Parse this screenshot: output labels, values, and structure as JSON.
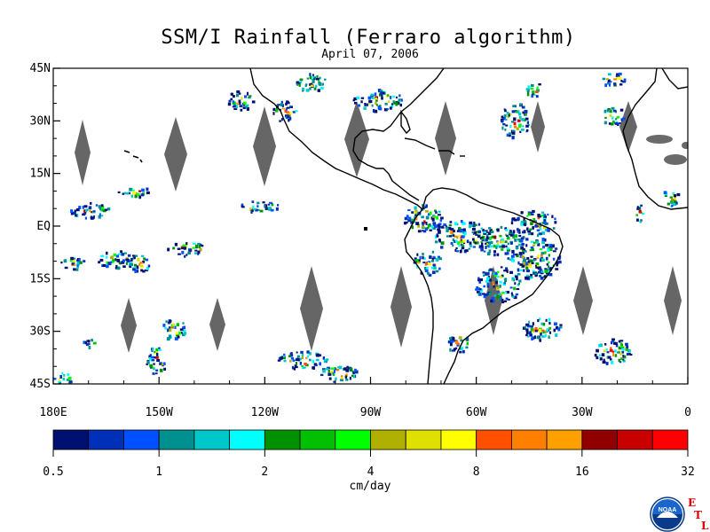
{
  "title": "SSM/I Rainfall (Ferraro algorithm)",
  "subtitle": "April 07, 2006",
  "lat_labels": [
    "45N",
    "30N",
    "15N",
    "EQ",
    "15S",
    "30S",
    "45S"
  ],
  "lon_labels": [
    "180E",
    "150W",
    "120W",
    "90W",
    "60W",
    "30W",
    "0"
  ],
  "colorbar": {
    "colors": [
      "#001070",
      "#0030b8",
      "#0050ff",
      "#009090",
      "#00c8c8",
      "#00ffff",
      "#009000",
      "#00c000",
      "#00ff00",
      "#b0b000",
      "#e0e000",
      "#ffff00",
      "#ff5000",
      "#ff8000",
      "#ffa000",
      "#900000",
      "#c80000",
      "#ff0000"
    ],
    "tick_labels": [
      "0.5",
      "1",
      "2",
      "4",
      "8",
      "16",
      "32"
    ],
    "units": "cm/day"
  },
  "logo": {
    "text": "NOAA",
    "letters": [
      "E",
      "T",
      "L"
    ]
  }
}
